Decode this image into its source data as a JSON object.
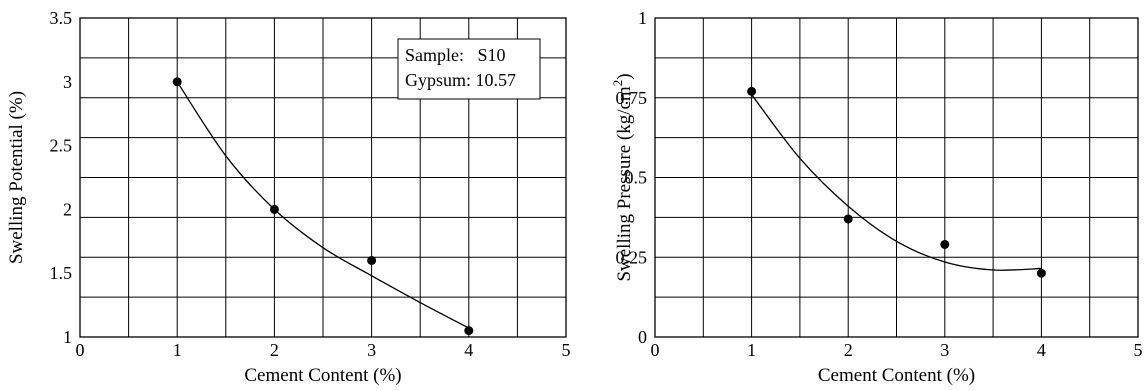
{
  "chart_data": [
    {
      "type": "scatter",
      "xlabel": "Cement Content (%)",
      "ylabel": "Swelling Potential (%)",
      "xlim": [
        0,
        5
      ],
      "ylim": [
        1,
        3.5
      ],
      "x_ticks": [
        "0",
        "1",
        "2",
        "3",
        "4",
        "5"
      ],
      "y_ticks": [
        "1",
        "1.5",
        "2",
        "2.5",
        "3",
        "3.5"
      ],
      "grid": true,
      "series": [
        {
          "x": [
            1,
            2,
            3,
            4
          ],
          "y": [
            3.0,
            2.0,
            1.6,
            1.05
          ]
        }
      ],
      "trend": {
        "x": [
          1,
          1.5,
          2,
          2.5,
          3,
          3.5,
          4
        ],
        "y": [
          3.0,
          2.42,
          2.0,
          1.7,
          1.48,
          1.27,
          1.07
        ]
      },
      "legend": {
        "lines": [
          "Sample:   S10",
          "Gypsum: 10.57"
        ],
        "placement": "top-right"
      }
    },
    {
      "type": "scatter",
      "xlabel": "Cement Content (%)",
      "ylabel": "Swelling Pressure (kg/cm",
      "ylabel_sup": "2",
      "ylabel_end": ")",
      "xlim": [
        0,
        5
      ],
      "ylim": [
        0,
        1
      ],
      "x_ticks": [
        "0",
        "1",
        "2",
        "3",
        "4",
        "5"
      ],
      "y_ticks": [
        "0",
        "0.25",
        "0.5",
        "0.75",
        "1"
      ],
      "grid": true,
      "series": [
        {
          "x": [
            1,
            2,
            3,
            4
          ],
          "y": [
            0.77,
            0.37,
            0.29,
            0.2
          ]
        }
      ],
      "trend": {
        "x": [
          1,
          1.5,
          2,
          2.5,
          3,
          3.5,
          4
        ],
        "y": [
          0.76,
          0.56,
          0.41,
          0.3,
          0.235,
          0.21,
          0.215
        ]
      }
    }
  ]
}
